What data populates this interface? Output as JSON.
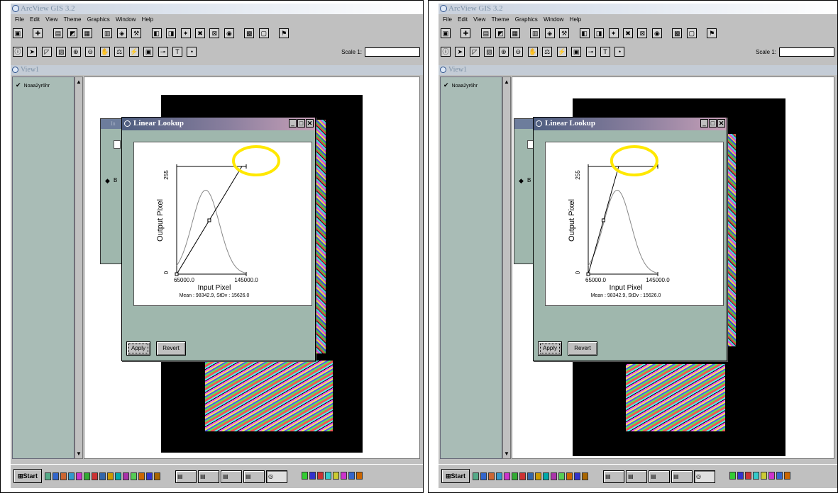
{
  "panels": [
    {
      "app_title": "ArcView GIS 3.2",
      "menu": [
        "File",
        "Edit",
        "View",
        "Theme",
        "Graphics",
        "Window",
        "Help"
      ],
      "scale_label": "Scale 1:",
      "view_title": "View1",
      "theme_name": "Noaa2yr6hr",
      "background_dialog_title": "In",
      "background_radio_label": "B",
      "dialog": {
        "title": "Linear Lookup",
        "apply_label": "Apply",
        "revert_label": "Revert"
      },
      "chart_data": {
        "type": "line",
        "title": "",
        "xlabel": "Input Pixel",
        "ylabel": "Output Pixel",
        "x_min_label": "65000.0",
        "x_max_label": "145000.0",
        "y_min_label": "0",
        "y_max_label": "255",
        "stats": "Mean : 98342.9, StDv : 15626.0",
        "xlim": [
          65000,
          145000
        ],
        "ylim": [
          0,
          255
        ],
        "series": [
          {
            "kind": "lookup-line",
            "x": [
              65000,
              140000
            ],
            "y": [
              0,
              255
            ]
          },
          {
            "kind": "histogram-curve",
            "mean": 98342.9,
            "stdev": 15626.0
          }
        ],
        "highlight": "yellow-ellipse"
      },
      "taskbar": {
        "start_label": "Start",
        "tasks": [
          "",
          "",
          "",
          "",
          ""
        ]
      }
    },
    {
      "app_title": "ArcView GIS 3.2",
      "menu": [
        "File",
        "Edit",
        "View",
        "Theme",
        "Graphics",
        "Window",
        "Help"
      ],
      "scale_label": "Scale 1:",
      "view_title": "View1",
      "theme_name": "Noaa2yr6hr",
      "background_dialog_title": "",
      "background_radio_label": "B",
      "dialog": {
        "title": "Linear Lookup",
        "apply_label": "Apply",
        "revert_label": "Revert"
      },
      "chart_data": {
        "type": "line",
        "title": "",
        "xlabel": "Input Pixel",
        "ylabel": "Output Pixel",
        "x_min_label": "65000.0",
        "x_max_label": "145000.0",
        "y_min_label": "0",
        "y_max_label": "255",
        "stats": "Mean : 98342.9, StDv : 15626.0",
        "xlim": [
          65000,
          145000
        ],
        "ylim": [
          0,
          255
        ],
        "series": [
          {
            "kind": "lookup-line",
            "x": [
              65000,
              100000
            ],
            "y": [
              0,
              255
            ]
          },
          {
            "kind": "histogram-curve",
            "mean": 98342.9,
            "stdev": 15626.0
          }
        ],
        "highlight": "yellow-ellipse"
      },
      "taskbar": {
        "start_label": "Start",
        "tasks": [
          "",
          "",
          "",
          "",
          ""
        ]
      }
    }
  ],
  "colors": {
    "highlight": "#ffe800",
    "dialog_bg": "#9fb7ad",
    "raster_bg": "#000000"
  }
}
